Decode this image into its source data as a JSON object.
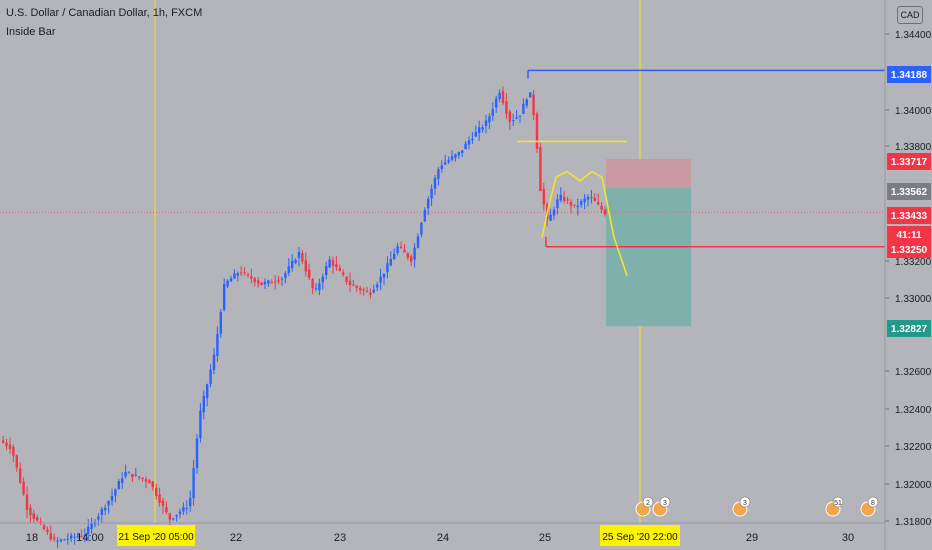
{
  "header": {
    "title": "U.S. Dollar / Canadian Dollar, 1h, FXCM",
    "indicator": "Inside Bar",
    "currency": "CAD"
  },
  "colors": {
    "background": "#b3b5bb",
    "up": "#2962ff",
    "down": "#f23645",
    "yellow": "#f5e52a",
    "stop_zone": "#c99aa1",
    "target_zone": "#7fb0ab"
  },
  "chart_data": {
    "type": "candlestick",
    "y_ticks": [
      "1.34400",
      "1.34000",
      "1.33800",
      "1.33200",
      "1.33000",
      "1.32600",
      "1.32400",
      "1.32200",
      "1.32000",
      "1.31800"
    ],
    "y_range": [
      1.3178,
      1.3452
    ],
    "x_ticks": [
      "18",
      "14:00",
      "22",
      "23",
      "24",
      "25",
      "29",
      "30"
    ],
    "x_highlight_labels": [
      "21 Sep '20  05:00",
      "25 Sep '20  22:00"
    ],
    "price_labels": [
      {
        "value": "1.34188",
        "price": 1.34188,
        "kind": "level-blue"
      },
      {
        "value": "1.33717",
        "price": 1.33717,
        "kind": "stop"
      },
      {
        "value": "1.33562",
        "price": 1.33562,
        "kind": "entry"
      },
      {
        "value": "1.33433",
        "price": 1.33433,
        "kind": "last"
      },
      {
        "value": "41:11",
        "price": 1.33365,
        "kind": "countdown"
      },
      {
        "value": "1.33250",
        "price": 1.3325,
        "kind": "level-red"
      },
      {
        "value": "1.32827",
        "price": 1.32827,
        "kind": "target"
      }
    ],
    "event_badges": [
      "2",
      "3",
      "3",
      "51",
      "8"
    ],
    "anchors": [
      [
        0,
        1.3222
      ],
      [
        12,
        1.3218
      ],
      [
        28,
        1.3185
      ],
      [
        55,
        1.3168
      ],
      [
        85,
        1.3172
      ],
      [
        112,
        1.3192
      ],
      [
        125,
        1.3205
      ],
      [
        150,
        1.32
      ],
      [
        170,
        1.318
      ],
      [
        190,
        1.3188
      ],
      [
        200,
        1.3235
      ],
      [
        215,
        1.3268
      ],
      [
        225,
        1.3305
      ],
      [
        240,
        1.3312
      ],
      [
        262,
        1.3305
      ],
      [
        282,
        1.3308
      ],
      [
        300,
        1.3322
      ],
      [
        315,
        1.33
      ],
      [
        330,
        1.3318
      ],
      [
        350,
        1.3305
      ],
      [
        370,
        1.33
      ],
      [
        383,
        1.331
      ],
      [
        398,
        1.3325
      ],
      [
        412,
        1.3318
      ],
      [
        425,
        1.3345
      ],
      [
        440,
        1.3368
      ],
      [
        460,
        1.3375
      ],
      [
        470,
        1.3382
      ],
      [
        488,
        1.3392
      ],
      [
        500,
        1.3408
      ],
      [
        510,
        1.3392
      ],
      [
        520,
        1.3395
      ],
      [
        530,
        1.3408
      ],
      [
        536,
        1.339
      ],
      [
        540,
        1.3358
      ],
      [
        548,
        1.3338
      ],
      [
        560,
        1.3352
      ],
      [
        575,
        1.3346
      ],
      [
        590,
        1.3352
      ],
      [
        605,
        1.3343
      ]
    ],
    "drawings": {
      "levels": [
        {
          "from_bar": 528,
          "price": 1.34188,
          "color": "#2962ff"
        },
        {
          "from_bar": 546,
          "price": 1.3325,
          "color": "#f23645"
        }
      ],
      "yellow_line": {
        "x": [
          517,
          627
        ],
        "price": 1.3381
      },
      "pattern_curve": [
        [
          542,
          1.333
        ],
        [
          548,
          1.3345
        ],
        [
          556,
          1.3362
        ],
        [
          567,
          1.3365
        ],
        [
          580,
          1.336
        ],
        [
          592,
          1.3365
        ],
        [
          602,
          1.3362
        ],
        [
          614,
          1.333
        ],
        [
          627,
          1.33095
        ]
      ],
      "position": {
        "x": [
          606,
          691
        ],
        "stop": 1.33717,
        "entry": 1.33562,
        "target": 1.32827
      }
    },
    "grid": false,
    "legend": "none"
  }
}
